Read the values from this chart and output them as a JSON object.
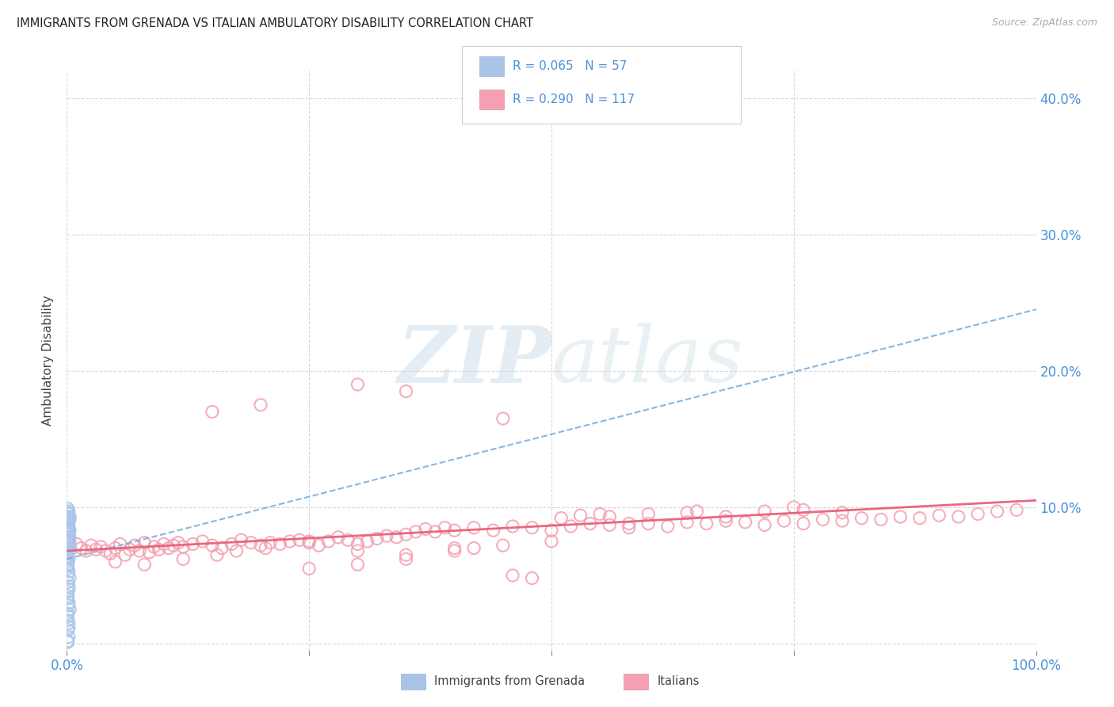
{
  "title": "IMMIGRANTS FROM GRENADA VS ITALIAN AMBULATORY DISABILITY CORRELATION CHART",
  "source": "Source: ZipAtlas.com",
  "ylabel": "Ambulatory Disability",
  "xlim": [
    0,
    1.0
  ],
  "ylim": [
    -0.005,
    0.42
  ],
  "xticks": [
    0.0,
    0.25,
    0.5,
    0.75,
    1.0
  ],
  "xtick_labels": [
    "0.0%",
    "",
    "",
    "",
    "100.0%"
  ],
  "yticks": [
    0.0,
    0.1,
    0.2,
    0.3,
    0.4
  ],
  "ytick_labels": [
    "",
    "10.0%",
    "20.0%",
    "30.0%",
    "40.0%"
  ],
  "bg_color": "#ffffff",
  "grid_color": "#d8d8d8",
  "series1_color": "#aac4e8",
  "series2_color": "#f4a0b0",
  "trendline1_color": "#7ab0e0",
  "trendline2_color": "#e8607a",
  "label1": "Immigrants from Grenada",
  "label2": "Italians",
  "series1_x": [
    0.001,
    0.002,
    0.003,
    0.001,
    0.002,
    0.001,
    0.001,
    0.002,
    0.003,
    0.004,
    0.001,
    0.001,
    0.002,
    0.001,
    0.002,
    0.001,
    0.003,
    0.001,
    0.001,
    0.002,
    0.001,
    0.003,
    0.002,
    0.001,
    0.002,
    0.002,
    0.001,
    0.002,
    0.001,
    0.001,
    0.002,
    0.001,
    0.001,
    0.003,
    0.001,
    0.001,
    0.002,
    0.001,
    0.001,
    0.002,
    0.001,
    0.002,
    0.003,
    0.001,
    0.002,
    0.001,
    0.002,
    0.001,
    0.001,
    0.003,
    0.002,
    0.001,
    0.001,
    0.002,
    0.001,
    0.001,
    0.002
  ],
  "series1_y": [
    0.092,
    0.085,
    0.078,
    0.072,
    0.095,
    0.068,
    0.099,
    0.062,
    0.074,
    0.069,
    0.058,
    0.086,
    0.08,
    0.073,
    0.089,
    0.063,
    0.093,
    0.067,
    0.076,
    0.082,
    0.055,
    0.091,
    0.075,
    0.06,
    0.084,
    0.097,
    0.057,
    0.078,
    0.064,
    0.09,
    0.07,
    0.096,
    0.05,
    0.083,
    0.066,
    0.087,
    0.053,
    0.093,
    0.045,
    0.04,
    0.035,
    0.03,
    0.025,
    0.02,
    0.015,
    0.01,
    0.005,
    0.002,
    0.001,
    0.048,
    0.042,
    0.038,
    0.033,
    0.028,
    0.022,
    0.017,
    0.012
  ],
  "series2_x": [
    0.01,
    0.015,
    0.02,
    0.025,
    0.03,
    0.035,
    0.04,
    0.045,
    0.05,
    0.055,
    0.06,
    0.065,
    0.07,
    0.075,
    0.08,
    0.085,
    0.09,
    0.095,
    0.1,
    0.105,
    0.11,
    0.115,
    0.12,
    0.13,
    0.14,
    0.15,
    0.16,
    0.17,
    0.18,
    0.19,
    0.2,
    0.21,
    0.22,
    0.23,
    0.24,
    0.25,
    0.26,
    0.27,
    0.28,
    0.29,
    0.3,
    0.31,
    0.32,
    0.33,
    0.34,
    0.35,
    0.36,
    0.37,
    0.38,
    0.39,
    0.4,
    0.42,
    0.44,
    0.46,
    0.48,
    0.5,
    0.52,
    0.54,
    0.56,
    0.58,
    0.6,
    0.62,
    0.64,
    0.66,
    0.68,
    0.7,
    0.72,
    0.74,
    0.76,
    0.78,
    0.8,
    0.82,
    0.84,
    0.86,
    0.88,
    0.9,
    0.92,
    0.94,
    0.96,
    0.98,
    0.05,
    0.08,
    0.12,
    0.155,
    0.175,
    0.205,
    0.25,
    0.3,
    0.35,
    0.4,
    0.45,
    0.5,
    0.45,
    0.35,
    0.3,
    0.2,
    0.15,
    0.55,
    0.65,
    0.75,
    0.25,
    0.3,
    0.35,
    0.4,
    0.42,
    0.46,
    0.48,
    0.51,
    0.53,
    0.56,
    0.58,
    0.6,
    0.64,
    0.68,
    0.72,
    0.76,
    0.8
  ],
  "series2_y": [
    0.073,
    0.07,
    0.068,
    0.072,
    0.069,
    0.071,
    0.068,
    0.066,
    0.07,
    0.073,
    0.065,
    0.069,
    0.072,
    0.068,
    0.074,
    0.067,
    0.071,
    0.069,
    0.073,
    0.07,
    0.072,
    0.074,
    0.071,
    0.073,
    0.075,
    0.072,
    0.07,
    0.073,
    0.076,
    0.074,
    0.072,
    0.074,
    0.073,
    0.075,
    0.076,
    0.074,
    0.072,
    0.075,
    0.078,
    0.076,
    0.073,
    0.075,
    0.077,
    0.079,
    0.078,
    0.08,
    0.082,
    0.084,
    0.082,
    0.085,
    0.083,
    0.085,
    0.083,
    0.086,
    0.085,
    0.083,
    0.086,
    0.088,
    0.087,
    0.085,
    0.088,
    0.086,
    0.089,
    0.088,
    0.09,
    0.089,
    0.087,
    0.09,
    0.088,
    0.091,
    0.09,
    0.092,
    0.091,
    0.093,
    0.092,
    0.094,
    0.093,
    0.095,
    0.097,
    0.098,
    0.06,
    0.058,
    0.062,
    0.065,
    0.068,
    0.07,
    0.075,
    0.068,
    0.065,
    0.07,
    0.072,
    0.075,
    0.165,
    0.185,
    0.19,
    0.175,
    0.17,
    0.095,
    0.097,
    0.1,
    0.055,
    0.058,
    0.062,
    0.068,
    0.07,
    0.05,
    0.048,
    0.092,
    0.094,
    0.093,
    0.088,
    0.095,
    0.096,
    0.093,
    0.097,
    0.098,
    0.096
  ],
  "trendline1_x0": 0.0,
  "trendline1_x1": 1.0,
  "trendline1_y0": 0.062,
  "trendline1_y1": 0.245,
  "trendline2_x0": 0.0,
  "trendline2_x1": 1.0,
  "trendline2_y0": 0.068,
  "trendline2_y1": 0.105
}
